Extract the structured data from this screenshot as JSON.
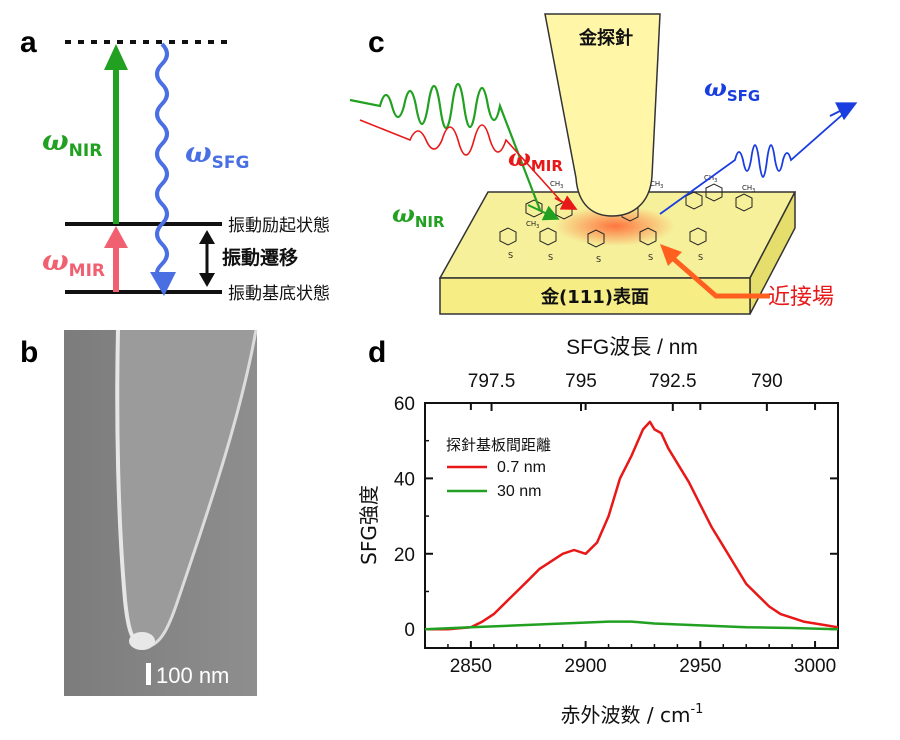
{
  "panels": {
    "a": "a",
    "b": "b",
    "c": "c",
    "d": "d"
  },
  "panel_a": {
    "omega_nir": "ω",
    "omega_nir_sub": "NIR",
    "omega_sfg": "ω",
    "omega_sfg_sub": "SFG",
    "omega_mir": "ω",
    "omega_mir_sub": "MIR",
    "excited_state": "振動励起状態",
    "transition": "振動遷移",
    "ground_state": "振動基底状態",
    "colors": {
      "nir": "#22a022",
      "sfg": "#4a6fe3",
      "mir": "#f06070"
    }
  },
  "panel_b": {
    "scale_bar": "100 nm"
  },
  "panel_c": {
    "tip_label": "金探針",
    "surface_label": "金(111)表面",
    "near_field_label": "近接場",
    "omega_sfg": "ω",
    "omega_sfg_sub": "SFG",
    "omega_mir": "ω",
    "omega_mir_sub": "MIR",
    "omega_nir": "ω",
    "omega_nir_sub": "NIR",
    "molecule_ch3": "CH",
    "molecule_ch3_sub": "3",
    "molecule_s": "S",
    "colors": {
      "tip": "#fff6a8",
      "surface": "#f6f09a",
      "near_field": "#ff7040",
      "mir": "#e82020",
      "nir": "#22a022",
      "sfg": "#1a3de0"
    }
  },
  "chart_data": {
    "type": "line",
    "xlabel": "赤外波数 / cm",
    "xlabel_sup": "-1",
    "ylabel": "SFG強度",
    "top_axis_label": "SFG波長 / nm",
    "xlim": [
      2830,
      3010
    ],
    "ylim": [
      -5,
      60
    ],
    "x_ticks": [
      "2850",
      "2900",
      "2950",
      "3000"
    ],
    "x_tick_values": [
      2850,
      2900,
      2950,
      3000
    ],
    "y_ticks": [
      "0",
      "20",
      "40",
      "60"
    ],
    "y_tick_values": [
      0,
      20,
      40,
      60
    ],
    "top_ticks": [
      "797.5",
      "795",
      "792.5",
      "790"
    ],
    "top_tick_values": [
      2859,
      2898,
      2938,
      2979
    ],
    "legend_title": "探針基板間距離",
    "legend_position": "top-left",
    "series": [
      {
        "name": "0.7 nm",
        "color": "#e81818",
        "x": [
          2830,
          2840,
          2850,
          2855,
          2860,
          2865,
          2870,
          2875,
          2880,
          2885,
          2890,
          2895,
          2900,
          2905,
          2910,
          2915,
          2920,
          2925,
          2928,
          2930,
          2933,
          2936,
          2940,
          2945,
          2950,
          2955,
          2960,
          2965,
          2970,
          2975,
          2980,
          2985,
          2990,
          2995,
          3000,
          3005,
          3010
        ],
        "y": [
          0,
          0,
          0.5,
          2,
          4,
          7,
          10,
          13,
          16,
          18,
          20,
          21,
          20,
          23,
          30,
          40,
          46,
          53,
          55,
          53,
          52,
          48,
          44,
          39,
          33,
          27,
          22,
          17,
          12,
          9,
          6,
          4,
          3,
          2,
          1.5,
          1,
          0.5
        ]
      },
      {
        "name": "30 nm",
        "color": "#22a022",
        "x": [
          2830,
          2850,
          2870,
          2890,
          2910,
          2920,
          2930,
          2950,
          2970,
          2990,
          3010
        ],
        "y": [
          0,
          0.5,
          1,
          1.5,
          2,
          2,
          1.5,
          1,
          0.5,
          0.3,
          0
        ]
      }
    ]
  }
}
